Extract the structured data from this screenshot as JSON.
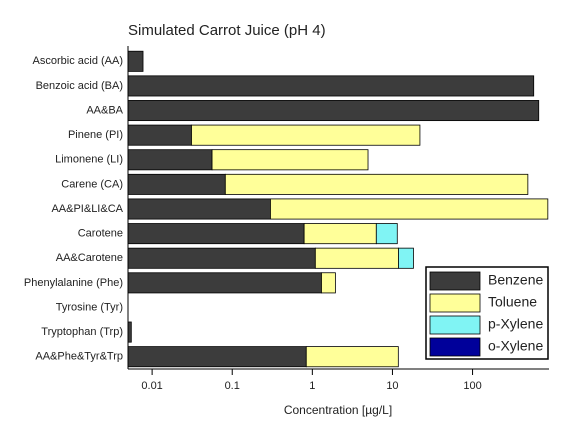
{
  "chart_data": {
    "type": "bar",
    "orientation": "horizontal",
    "stacked": true,
    "title": "Simulated Carrot Juice (pH 4)",
    "xlabel": "Concentration [µg/L]",
    "xscale": "log",
    "categories": [
      "Ascorbic acid (AA)",
      "Benzoic acid (BA)",
      "AA&BA",
      "Pinene (PI)",
      "Limonene (LI)",
      "Carene (CA)",
      "AA&PI&LI&CA",
      "Carotene",
      "AA&Carotene",
      "Phenylalanine (Phe)",
      "Tyrosine (Tyr)",
      "Tryptophan (Trp)",
      "AA&Phe&Tyr&Trp"
    ],
    "series": [
      {
        "name": "Benzene",
        "color": "#3c3c3c",
        "values": [
          0.0077,
          580,
          670,
          0.031,
          0.056,
          0.082,
          0.3,
          0.79,
          1.09,
          1.3,
          null,
          0.0055,
          0.84
        ]
      },
      {
        "name": "Toluene",
        "color": "#ffff99",
        "values": [
          null,
          null,
          null,
          22,
          4.9,
          490,
          870,
          5.5,
          10.8,
          0.64,
          null,
          null,
          11
        ]
      },
      {
        "name": "p-Xylene",
        "color": "#80f4f4",
        "values": [
          null,
          null,
          null,
          null,
          null,
          null,
          null,
          5.2,
          6.4,
          null,
          null,
          null,
          null
        ]
      },
      {
        "name": "o-Xylene",
        "color": "#00009a",
        "values": [
          null,
          null,
          null,
          null,
          null,
          null,
          null,
          null,
          null,
          null,
          null,
          null,
          null
        ]
      }
    ],
    "xlim": [
      0.005,
      900
    ],
    "xticks": [
      0.01,
      0.1,
      1,
      10,
      100
    ],
    "legend": "lower right"
  }
}
